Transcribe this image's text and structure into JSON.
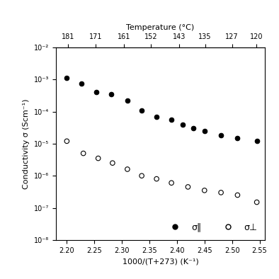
{
  "chart_data": {
    "type": "scatter",
    "xlabel": "1000/(T+273) (K⁻¹)",
    "ylabel": "Conductivity σ (Scm⁻¹)",
    "x2label": "Temperature (°C)",
    "x2ticks": [
      181,
      171,
      161,
      152,
      143,
      135,
      127,
      120
    ],
    "log": "y",
    "legend": "lower right",
    "xlim": [
      2.18,
      2.56
    ],
    "ylim": [
      1e-08,
      0.01
    ],
    "xticks": [
      {
        "value": 2.2,
        "label": "2.20"
      },
      {
        "value": 2.25,
        "label": "2.25"
      },
      {
        "value": 2.3,
        "label": "2.30"
      },
      {
        "value": 2.35,
        "label": "2.35"
      },
      {
        "value": 2.4,
        "label": "2.40"
      },
      {
        "value": 2.45,
        "label": "2.45"
      },
      {
        "value": 2.5,
        "label": "2.50"
      },
      {
        "value": 2.55,
        "label": "2.55"
      }
    ],
    "yticks": [
      {
        "value": 1e-08,
        "label": "10⁻⁸"
      },
      {
        "value": 1e-07,
        "label": "10⁻⁷"
      },
      {
        "value": 1e-06,
        "label": "10⁻⁶"
      },
      {
        "value": 1e-05,
        "label": "10⁻⁵"
      },
      {
        "value": 0.0001,
        "label": "10⁻⁴"
      },
      {
        "value": 0.001,
        "label": "10⁻³"
      },
      {
        "value": 0.01,
        "label": "10⁻²"
      }
    ],
    "series": [
      {
        "name": "σ∥",
        "color": "#000000",
        "marker": "filled",
        "x": [
          2.2,
          2.226,
          2.254,
          2.281,
          2.31,
          2.336,
          2.363,
          2.39,
          2.41,
          2.43,
          2.45,
          2.48,
          2.51,
          2.545
        ],
        "values": [
          0.0011,
          0.00075,
          0.0004,
          0.00035,
          0.00022,
          0.00011,
          7e-05,
          5.5e-05,
          4e-05,
          3e-05,
          2.5e-05,
          1.8e-05,
          1.5e-05,
          1.2e-05
        ]
      },
      {
        "name": "σ⊥",
        "color": "#000000",
        "marker": "open",
        "x": [
          2.2,
          2.23,
          2.257,
          2.283,
          2.31,
          2.336,
          2.363,
          2.39,
          2.42,
          2.45,
          2.48,
          2.51,
          2.545
        ],
        "values": [
          1.2e-05,
          5e-06,
          3.5e-06,
          2.5e-06,
          1.6e-06,
          1e-06,
          8e-07,
          6e-07,
          4.5e-07,
          3.5e-07,
          3e-07,
          2.5e-07,
          1.5e-07
        ]
      }
    ]
  }
}
